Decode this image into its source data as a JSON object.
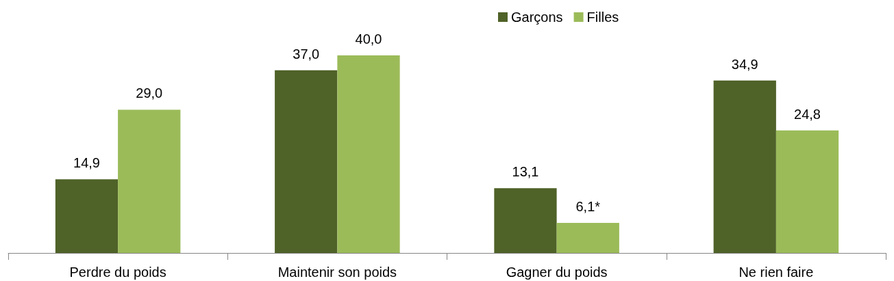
{
  "chart_data": {
    "type": "bar",
    "categories": [
      "Perdre du poids",
      "Maintenir son poids",
      "Gagner du poids",
      "Ne rien faire"
    ],
    "series": [
      {
        "name": "Garçons",
        "color": "#4f6228",
        "values": [
          14.9,
          37.0,
          13.1,
          34.9
        ],
        "value_labels": [
          "14,9",
          "37,0",
          "13,1",
          "34,9"
        ]
      },
      {
        "name": "Filles",
        "color": "#9bbb59",
        "values": [
          29.0,
          40.0,
          6.1,
          24.8
        ],
        "value_labels": [
          "29,0",
          "40,0",
          "6,1*",
          "24,8"
        ]
      }
    ],
    "legend": "top",
    "grid": false
  }
}
